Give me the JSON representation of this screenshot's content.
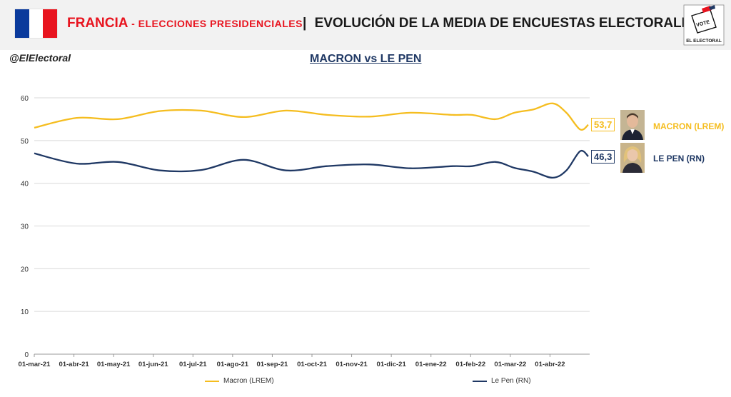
{
  "header": {
    "country": "FRANCIA",
    "subtitle": "- ELECCIONES PRESIDENCIALES",
    "separator": "|",
    "title": "EVOLUCIÓN DE LA MEDIA DE ENCUESTAS ELECTORALES",
    "logo_top": "VOTE",
    "logo_bottom": "EL ELECTORAL",
    "flag_colors": [
      "#0a3a9c",
      "#ffffff",
      "#e8141f"
    ]
  },
  "handle": "@ElElectoral",
  "chart_subtitle": "MACRON vs LE PEN",
  "end_labels": {
    "macron_value": "53,7",
    "lepen_value": "46,3",
    "macron_name": "MACRON (LREM)",
    "lepen_name": "LE PEN (RN)"
  },
  "legend": {
    "macron": "Macron (LREM)",
    "lepen": "Le Pen (RN)"
  },
  "chart_data": {
    "type": "line",
    "title": "MACRON vs LE PEN",
    "xlabel": "",
    "ylabel": "",
    "ylim": [
      0,
      60
    ],
    "yticks": [
      0,
      10,
      20,
      30,
      40,
      50,
      60
    ],
    "grid": true,
    "legend_position": "bottom",
    "x_tick_labels": [
      "01-mar-21",
      "01-abr-21",
      "01-may-21",
      "01-jun-21",
      "01-jul-21",
      "01-ago-21",
      "01-sep-21",
      "01-oct-21",
      "01-nov-21",
      "01-dic-21",
      "01-ene-22",
      "01-feb-22",
      "01-mar-22",
      "01-abr-22"
    ],
    "series": [
      {
        "name": "Macron (LREM)",
        "color": "#f5bd1f",
        "points": [
          [
            "2021-03-01",
            53.0
          ],
          [
            "2021-04-01",
            55.3
          ],
          [
            "2021-05-01",
            55.0
          ],
          [
            "2021-06-01",
            56.9
          ],
          [
            "2021-07-01",
            57.0
          ],
          [
            "2021-08-01",
            55.5
          ],
          [
            "2021-09-01",
            57.0
          ],
          [
            "2021-10-01",
            56.0
          ],
          [
            "2021-11-01",
            55.6
          ],
          [
            "2021-12-01",
            56.5
          ],
          [
            "2022-01-01",
            56.0
          ],
          [
            "2022-01-15",
            56.0
          ],
          [
            "2022-02-01",
            55.0
          ],
          [
            "2022-02-15",
            56.5
          ],
          [
            "2022-03-01",
            57.3
          ],
          [
            "2022-03-15",
            58.7
          ],
          [
            "2022-03-25",
            56.5
          ],
          [
            "2022-04-04",
            52.6
          ],
          [
            "2022-04-10",
            53.7
          ]
        ]
      },
      {
        "name": "Le Pen (RN)",
        "color": "#1f3864",
        "points": [
          [
            "2021-03-01",
            47.0
          ],
          [
            "2021-04-01",
            44.6
          ],
          [
            "2021-05-01",
            45.0
          ],
          [
            "2021-06-01",
            43.0
          ],
          [
            "2021-07-01",
            43.1
          ],
          [
            "2021-08-01",
            45.5
          ],
          [
            "2021-09-01",
            43.0
          ],
          [
            "2021-10-01",
            44.0
          ],
          [
            "2021-11-01",
            44.4
          ],
          [
            "2021-12-01",
            43.5
          ],
          [
            "2022-01-01",
            44.0
          ],
          [
            "2022-01-15",
            44.0
          ],
          [
            "2022-02-01",
            45.0
          ],
          [
            "2022-02-15",
            43.6
          ],
          [
            "2022-03-01",
            42.7
          ],
          [
            "2022-03-15",
            41.3
          ],
          [
            "2022-03-25",
            43.0
          ],
          [
            "2022-04-04",
            47.5
          ],
          [
            "2022-04-10",
            46.3
          ]
        ]
      }
    ]
  }
}
